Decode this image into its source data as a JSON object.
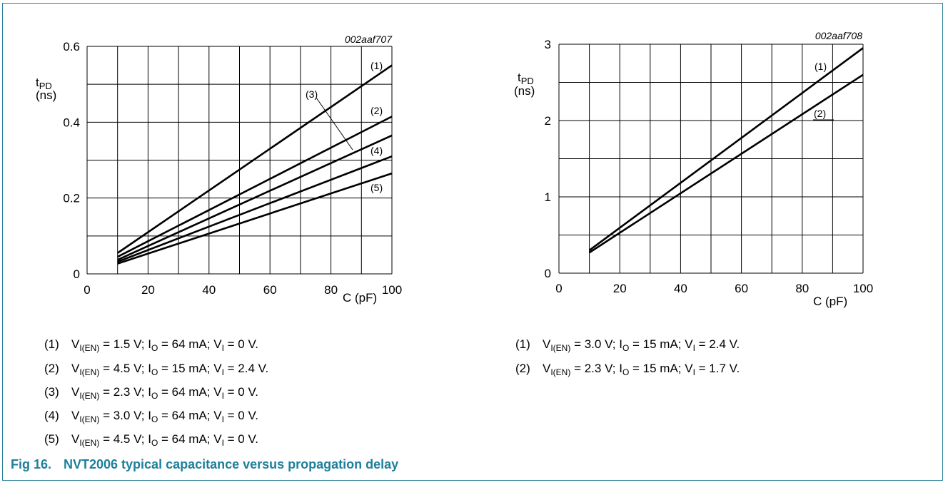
{
  "caption": {
    "fig": "Fig 16.",
    "title": "NVT2006 typical capacitance versus propagation delay"
  },
  "charts": [
    {
      "code": "002aaf707",
      "ylabel_main": "t",
      "ylabel_sub": "PD",
      "yunit": "(ns)",
      "xlabel": "C (pF)",
      "xticks": [
        "0",
        "20",
        "40",
        "60",
        "80",
        "100"
      ],
      "yticks": [
        "0",
        "0.2",
        "0.4",
        "0.6"
      ],
      "curve_labels": [
        "(1)",
        "(2)",
        "(3)",
        "(4)",
        "(5)"
      ],
      "notes": [
        {
          "num": "(1)",
          "a": "V",
          "a_sub": "I(EN)",
          "b": " = 1.5 V; I",
          "b_sub": "O",
          "c": " = 64 mA; V",
          "c_sub": "I",
          "d": " = 0 V."
        },
        {
          "num": "(2)",
          "a": "V",
          "a_sub": "I(EN)",
          "b": " = 4.5 V; I",
          "b_sub": "O",
          "c": " = 15 mA; V",
          "c_sub": "I",
          "d": " = 2.4 V."
        },
        {
          "num": "(3)",
          "a": "V",
          "a_sub": "I(EN)",
          "b": " = 2.3 V; I",
          "b_sub": "O",
          "c": " = 64 mA; V",
          "c_sub": "I",
          "d": " = 0 V."
        },
        {
          "num": "(4)",
          "a": "V",
          "a_sub": "I(EN)",
          "b": " = 3.0 V; I",
          "b_sub": "O",
          "c": " = 64 mA; V",
          "c_sub": "I",
          "d": " = 0 V."
        },
        {
          "num": "(5)",
          "a": "V",
          "a_sub": "I(EN)",
          "b": " = 4.5 V; I",
          "b_sub": "O",
          "c": " = 64 mA; V",
          "c_sub": "I",
          "d": " = 0 V."
        }
      ]
    },
    {
      "code": "002aaf708",
      "ylabel_main": "t",
      "ylabel_sub": "PD",
      "yunit": "(ns)",
      "xlabel": "C (pF)",
      "xticks": [
        "0",
        "20",
        "40",
        "60",
        "80",
        "100"
      ],
      "yticks": [
        "0",
        "1",
        "2",
        "3"
      ],
      "curve_labels": [
        "(1)",
        "(2)"
      ],
      "notes": [
        {
          "num": "(1)",
          "a": "V",
          "a_sub": "I(EN)",
          "b": " = 3.0 V; I",
          "b_sub": "O",
          "c": " = 15 mA; V",
          "c_sub": "I",
          "d": " = 2.4 V."
        },
        {
          "num": "(2)",
          "a": "V",
          "a_sub": "I(EN)",
          "b": " = 2.3 V; I",
          "b_sub": "O",
          "c": " = 15 mA; V",
          "c_sub": "I",
          "d": " = 1.7 V."
        }
      ]
    }
  ],
  "chart_data": [
    {
      "type": "line",
      "xlim": [
        0,
        100
      ],
      "ylim": [
        0,
        0.6
      ],
      "grid": true,
      "series": [
        {
          "name": "(1)",
          "x": [
            10,
            100
          ],
          "y": [
            0.055,
            0.55
          ]
        },
        {
          "name": "(2)",
          "x": [
            10,
            100
          ],
          "y": [
            0.045,
            0.415
          ]
        },
        {
          "name": "(3)",
          "x": [
            10,
            100
          ],
          "y": [
            0.037,
            0.365
          ]
        },
        {
          "name": "(4)",
          "x": [
            10,
            100
          ],
          "y": [
            0.032,
            0.31
          ]
        },
        {
          "name": "(5)",
          "x": [
            10,
            100
          ],
          "y": [
            0.027,
            0.265
          ]
        }
      ]
    },
    {
      "type": "line",
      "xlim": [
        0,
        100
      ],
      "ylim": [
        0,
        3
      ],
      "grid": true,
      "series": [
        {
          "name": "(1)",
          "x": [
            10,
            100
          ],
          "y": [
            0.3,
            2.95
          ]
        },
        {
          "name": "(2)",
          "x": [
            10,
            100
          ],
          "y": [
            0.27,
            2.6
          ]
        }
      ]
    }
  ]
}
